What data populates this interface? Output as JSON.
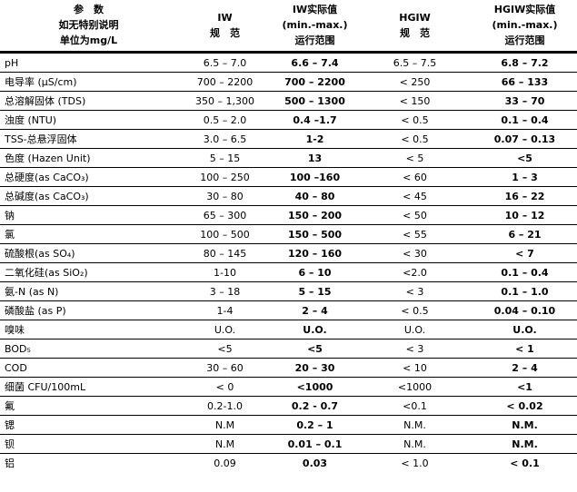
{
  "table": {
    "header": {
      "parameter": [
        "参　数",
        "如无特别说明",
        "单位为mg/L"
      ],
      "iw_spec": [
        "IW",
        "规　范"
      ],
      "iw_actual": [
        "IW实际值",
        "(min.-max.)",
        "运行范围"
      ],
      "hgiw_spec": [
        "HGIW",
        "规　范"
      ],
      "hgiw_actual": [
        "HGIW实际值",
        "(min.-max.)",
        "运行范围"
      ]
    },
    "cell_names": [
      "cell-parameter",
      "cell-iw-spec",
      "cell-iw-actual",
      "cell-hgiw-spec",
      "cell-hgiw-actual"
    ],
    "rows": [
      [
        "pH",
        "6.5 – 7.0",
        "6.6 – 7.4",
        "6.5 – 7.5",
        "6.8 – 7.2"
      ],
      [
        "电导率 (μS/cm)",
        "700 – 2200",
        "700 – 2200",
        "< 250",
        "66 – 133"
      ],
      [
        "总溶解固体 (TDS)",
        "350 – 1,300",
        "500 – 1300",
        "< 150",
        "33 – 70"
      ],
      [
        "浊度 (NTU)",
        "0.5 – 2.0",
        "0.4 –1.7",
        "< 0.5",
        "0.1 – 0.4"
      ],
      [
        "TSS-总悬浮固体",
        "3.0 – 6.5",
        "1-2",
        "< 0.5",
        "0.07 – 0.13"
      ],
      [
        "色度 (Hazen Unit)",
        "5 – 15",
        "13",
        "< 5",
        "<5"
      ],
      [
        "总硬度(as CaCO₃)",
        "100 – 250",
        "100 –160",
        "< 60",
        "1 – 3"
      ],
      [
        "总碱度(as CaCO₃)",
        "30 – 80",
        "40 – 80",
        "< 45",
        "16 – 22"
      ],
      [
        "钠",
        "65 – 300",
        "150 – 200",
        "< 50",
        "10 – 12"
      ],
      [
        "氯",
        "100 – 500",
        "150 – 500",
        "< 55",
        "6 – 21"
      ],
      [
        "硫酸根(as SO₄)",
        "80 – 145",
        "120 – 160",
        "< 30",
        "< 7"
      ],
      [
        "二氧化硅(as SiO₂)",
        "1-10",
        "6 – 10",
        "<2.0",
        "0.1 – 0.4"
      ],
      [
        "氨-N (as N)",
        "3 – 18",
        "5 – 15",
        "< 3",
        "0.1 – 1.0"
      ],
      [
        "磷酸盐 (as P)",
        "1-4",
        "2 – 4",
        "< 0.5",
        "0.04 – 0.10"
      ],
      [
        "嗅味",
        "U.O.",
        "U.O.",
        "U.O.",
        "U.O."
      ],
      [
        "BOD₅",
        "<5",
        "<5",
        "< 3",
        "< 1"
      ],
      [
        "COD",
        "30 – 60",
        "20 – 30",
        "< 10",
        "2 – 4"
      ],
      [
        "细菌 CFU/100mL",
        "< 0",
        "<1000",
        "<1000",
        "<1"
      ],
      [
        "氟",
        "0.2-1.0",
        "0.2 - 0.7",
        "<0.1",
        "< 0.02"
      ],
      [
        "锶",
        "N.M",
        "0.2 – 1",
        "N.M.",
        "N.M."
      ],
      [
        "钡",
        "N.M",
        "0.01 – 0.1",
        "N.M.",
        "N.M."
      ],
      [
        "铝",
        "0.09",
        "0.03",
        "< 1.0",
        "< 0.1"
      ]
    ]
  }
}
